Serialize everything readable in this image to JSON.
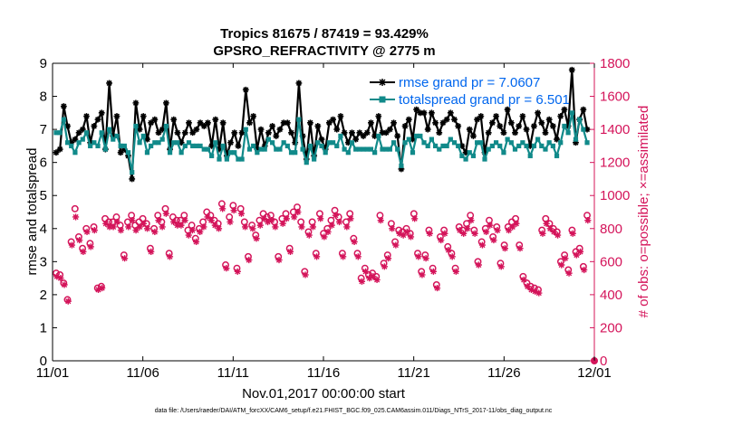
{
  "chart_data": {
    "type": "line",
    "title_line1": "Tropics 81675 / 87419 = 93.429%",
    "title_line2": "GPSRO_REFRACTIVITY @ 2775 m",
    "xlabel": "Nov.01,2017 00:00:00 start",
    "ylabel_left": "rmse and totalspread",
    "ylabel_right": "# of obs: o=possible; ×=assimilated",
    "footer": "data file: /Users/raeder/DAI/ATM_forcXX/CAM6_setup/f.e21.FHIST_BGC.f09_025.CAM6assim.011/Diags_NTrS_2017-11/obs_diag_output.nc",
    "x_tick_labels": [
      "11/01",
      "11/06",
      "11/11",
      "11/16",
      "11/21",
      "11/26",
      "12/01"
    ],
    "x_tick_days": [
      0,
      5,
      10,
      15,
      20,
      25,
      30
    ],
    "xlim": [
      0,
      30
    ],
    "ylim_left": [
      0,
      9
    ],
    "y_ticks_left": [
      "0",
      "1",
      "2",
      "3",
      "4",
      "5",
      "6",
      "7",
      "8",
      "9"
    ],
    "ylim_right": [
      0,
      1800
    ],
    "y_ticks_right": [
      "0",
      "200",
      "400",
      "600",
      "800",
      "1000",
      "1200",
      "1400",
      "1600",
      "1800"
    ],
    "legend_location": "top-right",
    "series": [
      {
        "name": "rmse grand pr = 7.0607",
        "axis": "left",
        "color": "#000000",
        "marker": "asterisk",
        "values": [
          6.3,
          6.4,
          7.7,
          7.1,
          6.6,
          6.7,
          6.9,
          7.0,
          7.4,
          6.6,
          7.1,
          7.3,
          7.5,
          6.4,
          8.4,
          6.8,
          7.4,
          6.3,
          6.4,
          6.2,
          5.5,
          7.8,
          7.0,
          7.4,
          6.7,
          7.2,
          7.3,
          6.9,
          7.0,
          7.8,
          6.4,
          7.3,
          6.9,
          6.6,
          6.9,
          7.2,
          6.9,
          7.0,
          7.2,
          7.1,
          7.2,
          6.5,
          7.3,
          6.4,
          7.2,
          6.2,
          6.6,
          6.9,
          6.5,
          6.9,
          8.2,
          7.2,
          7.4,
          6.4,
          7.0,
          6.5,
          6.9,
          7.1,
          6.8,
          7.0,
          7.2,
          7.2,
          6.9,
          6.6,
          8.4,
          6.8,
          6.1,
          7.2,
          6.2,
          7.1,
          6.7,
          6.4,
          7.2,
          7.3,
          7.0,
          7.4,
          6.9,
          6.6,
          6.9,
          6.7,
          6.9,
          6.8,
          6.9,
          7.2,
          6.8,
          7.4,
          6.9,
          6.9,
          7.0,
          7.2,
          6.8,
          5.8,
          7.1,
          7.3,
          6.7,
          7.6,
          7.5,
          7.5,
          7.0,
          7.5,
          7.2,
          6.9,
          7.2,
          7.3,
          7.5,
          7.3,
          7.1,
          6.5,
          6.3,
          7.0,
          6.8,
          7.3,
          7.4,
          6.3,
          6.9,
          7.2,
          7.4,
          7.1,
          6.9,
          7.6,
          7.2,
          6.9,
          7.1,
          7.4,
          7.0,
          6.5,
          7.1,
          7.5,
          7.2,
          6.9,
          7.3,
          7.1,
          6.7,
          7.4,
          7.6,
          7.1,
          8.8,
          6.6,
          7.3,
          7.6,
          7.0
        ]
      },
      {
        "name": "totalspread grand pr = 6.501",
        "axis": "left",
        "color": "#118a8a",
        "marker": "square",
        "values": [
          6.9,
          6.9,
          7.3,
          6.6,
          6.5,
          6.3,
          6.6,
          6.7,
          6.9,
          6.5,
          6.6,
          6.5,
          6.9,
          6.4,
          7.0,
          6.7,
          6.8,
          6.5,
          6.5,
          6.3,
          5.7,
          7.1,
          6.6,
          6.8,
          6.3,
          6.5,
          6.6,
          6.6,
          6.7,
          7.1,
          6.3,
          6.6,
          6.6,
          6.3,
          6.5,
          6.6,
          6.5,
          6.5,
          6.5,
          6.4,
          6.4,
          6.2,
          6.6,
          6.1,
          6.5,
          6.1,
          6.3,
          6.3,
          6.1,
          6.1,
          7.0,
          6.4,
          6.5,
          6.3,
          6.4,
          6.4,
          6.7,
          6.6,
          6.4,
          6.4,
          6.6,
          6.5,
          6.3,
          6.3,
          7.3,
          6.4,
          6.0,
          6.5,
          6.1,
          6.6,
          6.5,
          6.3,
          6.6,
          6.6,
          6.5,
          6.8,
          6.4,
          6.3,
          6.6,
          6.4,
          6.4,
          6.4,
          6.4,
          6.4,
          6.3,
          6.8,
          6.4,
          6.4,
          6.4,
          6.6,
          6.4,
          5.9,
          6.6,
          6.7,
          6.3,
          6.8,
          6.8,
          6.6,
          6.5,
          6.7,
          6.5,
          6.4,
          6.5,
          6.5,
          6.7,
          6.6,
          6.5,
          6.2,
          6.1,
          6.3,
          6.2,
          6.6,
          6.6,
          6.1,
          6.4,
          6.5,
          6.6,
          6.5,
          6.3,
          6.7,
          6.6,
          6.4,
          6.5,
          6.6,
          6.5,
          6.2,
          6.5,
          6.7,
          6.5,
          6.4,
          6.6,
          6.5,
          6.2,
          6.6,
          7.1,
          6.9,
          7.5,
          6.7,
          7.3,
          7.0,
          6.6
        ]
      },
      {
        "name": "obs possible",
        "axis": "right",
        "color": "#d4145a",
        "marker": "circle",
        "values": [
          530,
          520,
          470,
          370,
          720,
          920,
          750,
          680,
          800,
          710,
          810,
          440,
          450,
          860,
          840,
          840,
          870,
          820,
          640,
          840,
          880,
          820,
          840,
          860,
          830,
          680,
          800,
          880,
          840,
          920,
          650,
          870,
          850,
          850,
          880,
          790,
          820,
          740,
          800,
          840,
          900,
          880,
          850,
          830,
          950,
          580,
          870,
          940,
          560,
          920,
          840,
          630,
          820,
          760,
          850,
          890,
          870,
          880,
          840,
          630,
          860,
          890,
          680,
          900,
          930,
          840,
          540,
          780,
          840,
          650,
          890,
          770,
          800,
          850,
          910,
          870,
          650,
          840,
          890,
          740,
          650,
          500,
          560,
          520,
          530,
          510,
          880,
          590,
          640,
          830,
          720,
          790,
          780,
          800,
          770,
          890,
          650,
          540,
          640,
          790,
          560,
          460,
          750,
          790,
          690,
          650,
          560,
          810,
          790,
          830,
          880,
          790,
          600,
          720,
          800,
          850,
          750,
          810,
          590,
          700,
          810,
          840,
          860,
          700,
          510,
          470,
          450,
          440,
          430,
          790,
          860,
          830,
          800,
          780,
          600,
          640,
          550,
          790,
          660,
          680,
          570,
          880
        ]
      },
      {
        "name": "obs assimilated",
        "axis": "right",
        "color": "#d4145a",
        "marker": "asterisk",
        "values": [
          510,
          500,
          460,
          360,
          700,
          870,
          730,
          660,
          780,
          690,
          790,
          430,
          440,
          830,
          810,
          810,
          840,
          790,
          620,
          810,
          850,
          790,
          810,
          830,
          800,
          660,
          780,
          850,
          810,
          890,
          630,
          840,
          820,
          820,
          850,
          760,
          790,
          720,
          780,
          810,
          870,
          850,
          820,
          800,
          920,
          560,
          840,
          910,
          540,
          890,
          810,
          610,
          800,
          740,
          820,
          860,
          840,
          850,
          810,
          610,
          830,
          860,
          660,
          870,
          900,
          810,
          520,
          760,
          810,
          630,
          860,
          750,
          780,
          820,
          880,
          840,
          630,
          810,
          860,
          720,
          630,
          480,
          540,
          500,
          510,
          490,
          850,
          570,
          620,
          800,
          700,
          770,
          760,
          780,
          750,
          860,
          630,
          520,
          620,
          770,
          540,
          440,
          730,
          770,
          670,
          630,
          540,
          790,
          770,
          800,
          850,
          770,
          580,
          700,
          780,
          820,
          730,
          790,
          570,
          680,
          790,
          810,
          830,
          680,
          490,
          450,
          430,
          420,
          410,
          770,
          830,
          800,
          780,
          760,
          580,
          620,
          530,
          770,
          640,
          660,
          550,
          850
        ]
      }
    ]
  },
  "legend": {
    "rmse_label": "rmse grand pr = 7.0607",
    "spread_label": "totalspread grand pr = 6.501"
  }
}
